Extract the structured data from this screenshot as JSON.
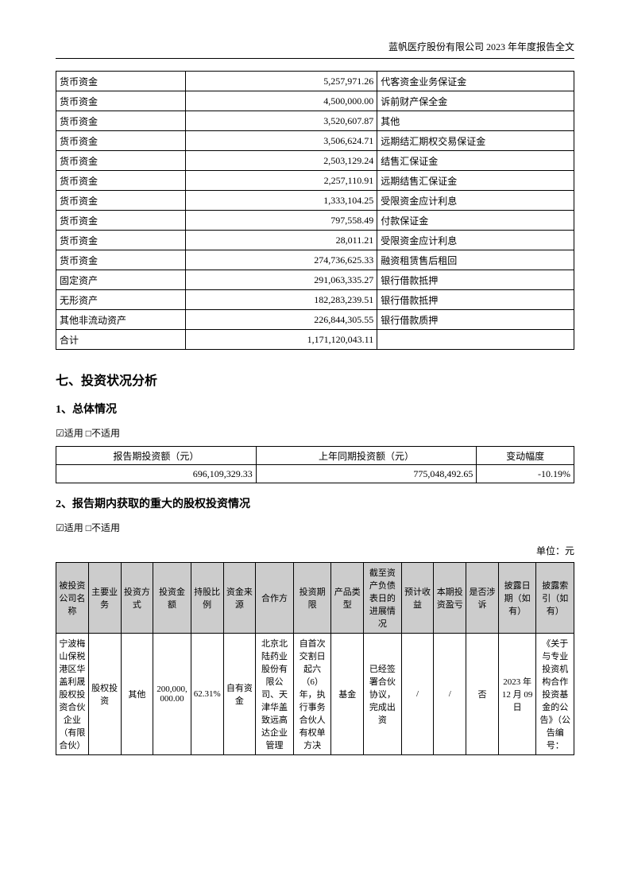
{
  "header": {
    "text": "蓝帆医疗股份有限公司 2023 年年度报告全文"
  },
  "table1": {
    "rows": [
      {
        "c1": "货币资金",
        "c2": "5,257,971.26",
        "c3": "代客资金业务保证金"
      },
      {
        "c1": "货币资金",
        "c2": "4,500,000.00",
        "c3": "诉前财产保全金"
      },
      {
        "c1": "货币资金",
        "c2": "3,520,607.87",
        "c3": "其他"
      },
      {
        "c1": "货币资金",
        "c2": "3,506,624.71",
        "c3": "远期结汇期权交易保证金"
      },
      {
        "c1": "货币资金",
        "c2": "2,503,129.24",
        "c3": "结售汇保证金"
      },
      {
        "c1": "货币资金",
        "c2": "2,257,110.91",
        "c3": "远期结售汇保证金"
      },
      {
        "c1": "货币资金",
        "c2": "1,333,104.25",
        "c3": "受限资金应计利息"
      },
      {
        "c1": "货币资金",
        "c2": "797,558.49",
        "c3": "付款保证金"
      },
      {
        "c1": "货币资金",
        "c2": "28,011.21",
        "c3": "受限资金应计利息"
      },
      {
        "c1": "货币资金",
        "c2": "274,736,625.33",
        "c3": "融资租赁售后租回"
      },
      {
        "c1": "固定资产",
        "c2": "291,063,335.27",
        "c3": "银行借款抵押"
      },
      {
        "c1": "无形资产",
        "c2": "182,283,239.51",
        "c3": "银行借款抵押"
      },
      {
        "c1": "其他非流动资产",
        "c2": "226,844,305.55",
        "c3": "银行借款质押"
      },
      {
        "c1": "合计",
        "c2": "1,171,120,043.11",
        "c3": ""
      }
    ]
  },
  "section7": {
    "title": "七、投资状况分析",
    "sub1": {
      "title": "1、总体情况",
      "applicable": "☑适用 □不适用",
      "headers": [
        "报告期投资额（元）",
        "上年同期投资额（元）",
        "变动幅度"
      ],
      "values": [
        "696,109,329.33",
        "775,048,492.65",
        "-10.19%"
      ]
    },
    "sub2": {
      "title": "2、报告期内获取的重大的股权投资情况",
      "applicable": "☑适用 □不适用",
      "unit": "单位：元",
      "headers": [
        "被投资公司名称",
        "主要业务",
        "投资方式",
        "投资金额",
        "持股比例",
        "资金来源",
        "合作方",
        "投资期限",
        "产品类型",
        "截至资产负债表日的进展情况",
        "预计收益",
        "本期投资盈亏",
        "是否涉诉",
        "披露日期（如有）",
        "披露索引（如有）"
      ],
      "row": {
        "c1": "宁波梅山保税港区华盖利晟股权投资合伙企业（有限合伙）",
        "c2": "股权投资",
        "c3": "其他",
        "c4": "200,000,000.00",
        "c5": "62.31%",
        "c6": "自有资金",
        "c7": "北京北陆药业股份有限公司、天津华盖致远高达企业管理",
        "c8": "自首次交割日起六（6）年，执行事务合伙人有权单方决",
        "c9": "基金",
        "c10": "已经签署合伙协议，完成出资",
        "c11": "/",
        "c12": "/",
        "c13": "否",
        "c14": "2023 年 12 月 09 日",
        "c15": "《关于与专业投资机构合作投资基金的公告》（公告编号："
      }
    }
  }
}
